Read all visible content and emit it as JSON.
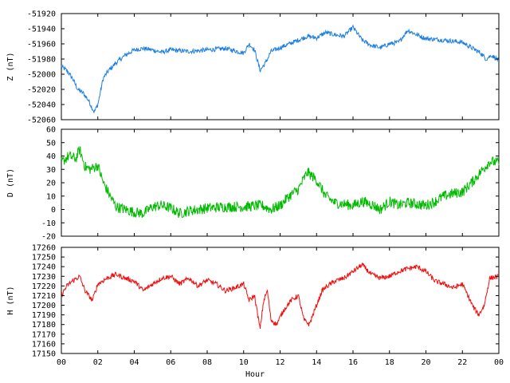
{
  "chart_data": [
    {
      "type": "line",
      "ylabel": "Z (nT)",
      "ylim": [
        -52060,
        -51920
      ],
      "yticks": [
        -51920,
        -51940,
        -51960,
        -51980,
        -52000,
        -52020,
        -52040,
        -52060
      ],
      "xlim": [
        0,
        24
      ],
      "color": "#1e7fe0",
      "noise": 3,
      "series": [
        {
          "x": [
            0,
            0.3,
            0.6,
            0.9,
            1.2,
            1.5,
            1.8,
            2.0,
            2.3,
            2.6,
            3.0,
            3.5,
            4.0,
            4.5,
            5.0,
            5.5,
            6.0,
            7.0,
            8.0,
            9.0,
            10.0,
            10.3,
            10.6,
            10.9,
            11.2,
            11.5,
            12.0,
            12.5,
            13.0,
            13.5,
            14.0,
            14.5,
            15.0,
            15.5,
            16.0,
            16.5,
            17.0,
            17.5,
            18.0,
            18.5,
            19.0,
            19.5,
            20.0,
            21.0,
            22.0,
            22.5,
            23.0,
            23.3,
            23.6,
            24.0
          ],
          "values": [
            -51990,
            -51995,
            -52005,
            -52020,
            -52025,
            -52035,
            -52050,
            -52040,
            -52005,
            -51995,
            -51985,
            -51975,
            -51968,
            -51966,
            -51968,
            -51971,
            -51968,
            -51970,
            -51968,
            -51966,
            -51972,
            -51960,
            -51968,
            -51995,
            -51985,
            -51970,
            -51965,
            -51960,
            -51955,
            -51950,
            -51952,
            -51945,
            -51948,
            -51950,
            -51938,
            -51955,
            -51962,
            -51965,
            -51960,
            -51958,
            -51942,
            -51948,
            -51953,
            -51955,
            -51958,
            -51965,
            -51972,
            -51980,
            -51975,
            -51982
          ]
        }
      ]
    },
    {
      "type": "line",
      "ylabel": "D (nT)",
      "ylim": [
        -20,
        60
      ],
      "yticks": [
        60,
        50,
        40,
        30,
        20,
        10,
        0,
        -10,
        -20
      ],
      "xlim": [
        0,
        24
      ],
      "color": "#00bb00",
      "noise": 4,
      "series": [
        {
          "x": [
            0,
            0.4,
            0.8,
            1.0,
            1.3,
            1.6,
            2.0,
            2.3,
            2.6,
            3.0,
            3.5,
            4.0,
            4.5,
            5.0,
            5.5,
            6.0,
            6.5,
            7.0,
            8.0,
            9.0,
            10.0,
            11.0,
            11.5,
            12.0,
            12.5,
            13.0,
            13.5,
            14.0,
            14.5,
            15.0,
            15.5,
            16.0,
            16.5,
            17.0,
            17.5,
            18.0,
            18.5,
            19.0,
            19.5,
            20.0,
            20.5,
            21.0,
            21.5,
            22.0,
            22.5,
            23.0,
            23.5,
            24.0
          ],
          "values": [
            35,
            40,
            38,
            45,
            32,
            30,
            33,
            20,
            12,
            2,
            0,
            -2,
            -3,
            2,
            3,
            1,
            -3,
            -1,
            1,
            2,
            2,
            3,
            0,
            3,
            10,
            15,
            28,
            22,
            10,
            5,
            4,
            3,
            6,
            4,
            0,
            6,
            3,
            5,
            4,
            3,
            6,
            10,
            12,
            13,
            20,
            28,
            36,
            35
          ]
        }
      ]
    },
    {
      "type": "line",
      "ylabel": "H (nT)",
      "xlabel": "Hour",
      "ylim": [
        17150,
        17260
      ],
      "yticks": [
        17260,
        17250,
        17240,
        17230,
        17220,
        17210,
        17200,
        17190,
        17180,
        17170,
        17160,
        17150
      ],
      "xlim": [
        0,
        24
      ],
      "xticks": [
        "00",
        "02",
        "04",
        "06",
        "08",
        "10",
        "12",
        "14",
        "16",
        "18",
        "20",
        "22",
        "00"
      ],
      "color": "#ee1111",
      "noise": 2.5,
      "series": [
        {
          "x": [
            0,
            0.3,
            0.6,
            1.0,
            1.3,
            1.7,
            2.0,
            2.5,
            3.0,
            3.5,
            4.0,
            4.5,
            5.0,
            5.5,
            6.0,
            6.5,
            7.0,
            7.5,
            8.0,
            8.5,
            9.0,
            9.5,
            10.0,
            10.3,
            10.6,
            10.9,
            11.1,
            11.3,
            11.5,
            11.8,
            12.2,
            12.6,
            13.0,
            13.3,
            13.6,
            14.0,
            14.3,
            14.6,
            15.0,
            15.5,
            16.0,
            16.5,
            17.0,
            17.5,
            18.0,
            18.5,
            19.0,
            19.5,
            20.0,
            20.5,
            21.0,
            21.5,
            22.0,
            22.3,
            22.6,
            22.9,
            23.2,
            23.5,
            24.0
          ],
          "values": [
            17210,
            17220,
            17225,
            17230,
            17215,
            17205,
            17222,
            17228,
            17232,
            17228,
            17225,
            17215,
            17222,
            17228,
            17230,
            17222,
            17228,
            17220,
            17226,
            17222,
            17215,
            17218,
            17222,
            17205,
            17210,
            17175,
            17205,
            17215,
            17185,
            17180,
            17195,
            17205,
            17210,
            17185,
            17180,
            17200,
            17215,
            17220,
            17225,
            17228,
            17235,
            17242,
            17232,
            17228,
            17230,
            17235,
            17238,
            17240,
            17235,
            17225,
            17222,
            17218,
            17222,
            17210,
            17198,
            17190,
            17200,
            17228,
            17230
          ]
        }
      ]
    }
  ]
}
